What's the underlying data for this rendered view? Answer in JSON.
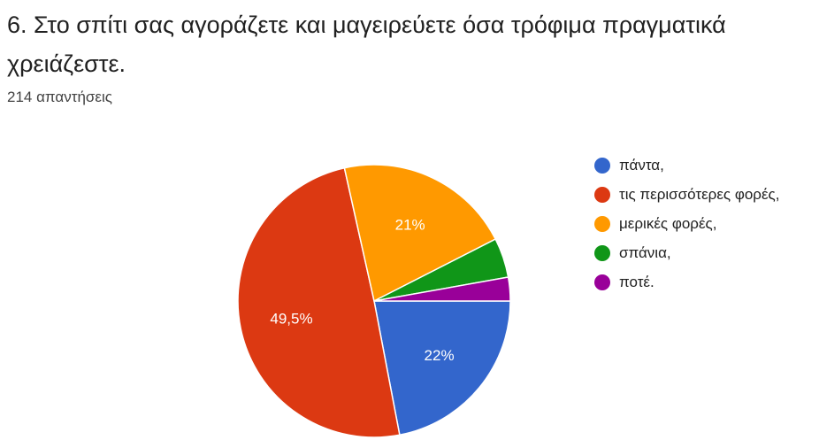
{
  "question": {
    "title": "6. Στο σπίτι σας αγοράζετε και μαγειρεύετε όσα τρόφιμα πραγματικά χρειάζεστε.",
    "response_count": "214 απαντήσεις"
  },
  "chart_data": {
    "type": "pie",
    "title": "",
    "categories": [
      "πάντα,",
      "τις περισσότερες φορές,",
      "μερικές φορές,",
      "σπάνια,",
      "ποτέ."
    ],
    "values": [
      22,
      49.5,
      21,
      4.7,
      2.8
    ],
    "slice_labels": [
      "22%",
      "49,5%",
      "21%",
      "",
      ""
    ],
    "colors": [
      "#3366cc",
      "#dc3912",
      "#ff9900",
      "#109618",
      "#990099"
    ],
    "legend_position": "right",
    "start": "clockwise from 3 o'clock"
  }
}
